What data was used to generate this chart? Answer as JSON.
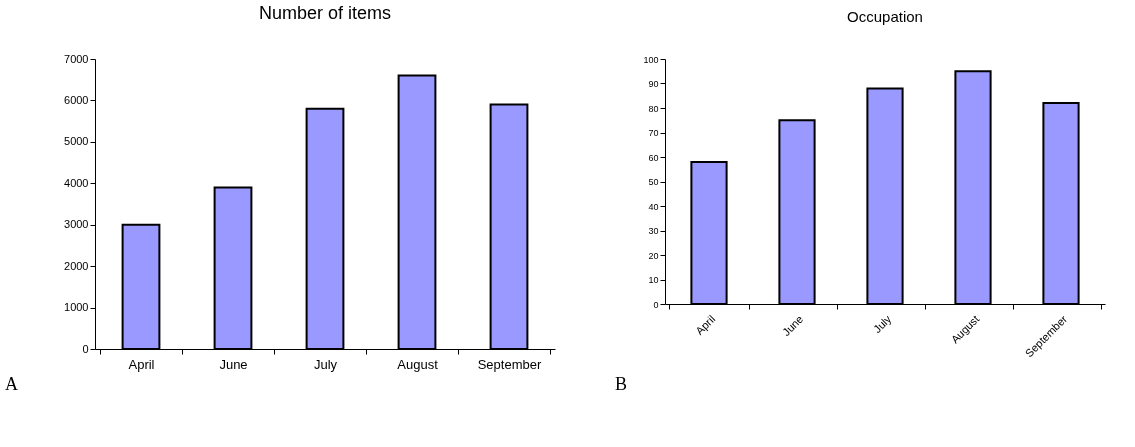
{
  "chart_data": [
    {
      "type": "bar",
      "title": "Number of items",
      "categories": [
        "April",
        "June",
        "July",
        "August",
        "September"
      ],
      "values": [
        3000,
        3900,
        5800,
        6600,
        5900
      ],
      "color": "#9999ff",
      "ylim": [
        0,
        7000
      ],
      "yticks": [
        0,
        1000,
        2000,
        3000,
        4000,
        5000,
        6000,
        7000
      ],
      "grid": false,
      "annotations": [
        "A"
      ]
    },
    {
      "type": "bar",
      "title": "Occupation",
      "categories": [
        "April",
        "June",
        "July",
        "August",
        "September"
      ],
      "values": [
        58,
        75,
        88,
        95,
        82
      ],
      "color": "#9999ff",
      "ylim": [
        0,
        100
      ],
      "yticks": [
        0,
        10,
        20,
        30,
        40,
        50,
        60,
        70,
        80,
        90,
        100
      ],
      "grid": false,
      "annotations": [
        "B"
      ]
    }
  ]
}
